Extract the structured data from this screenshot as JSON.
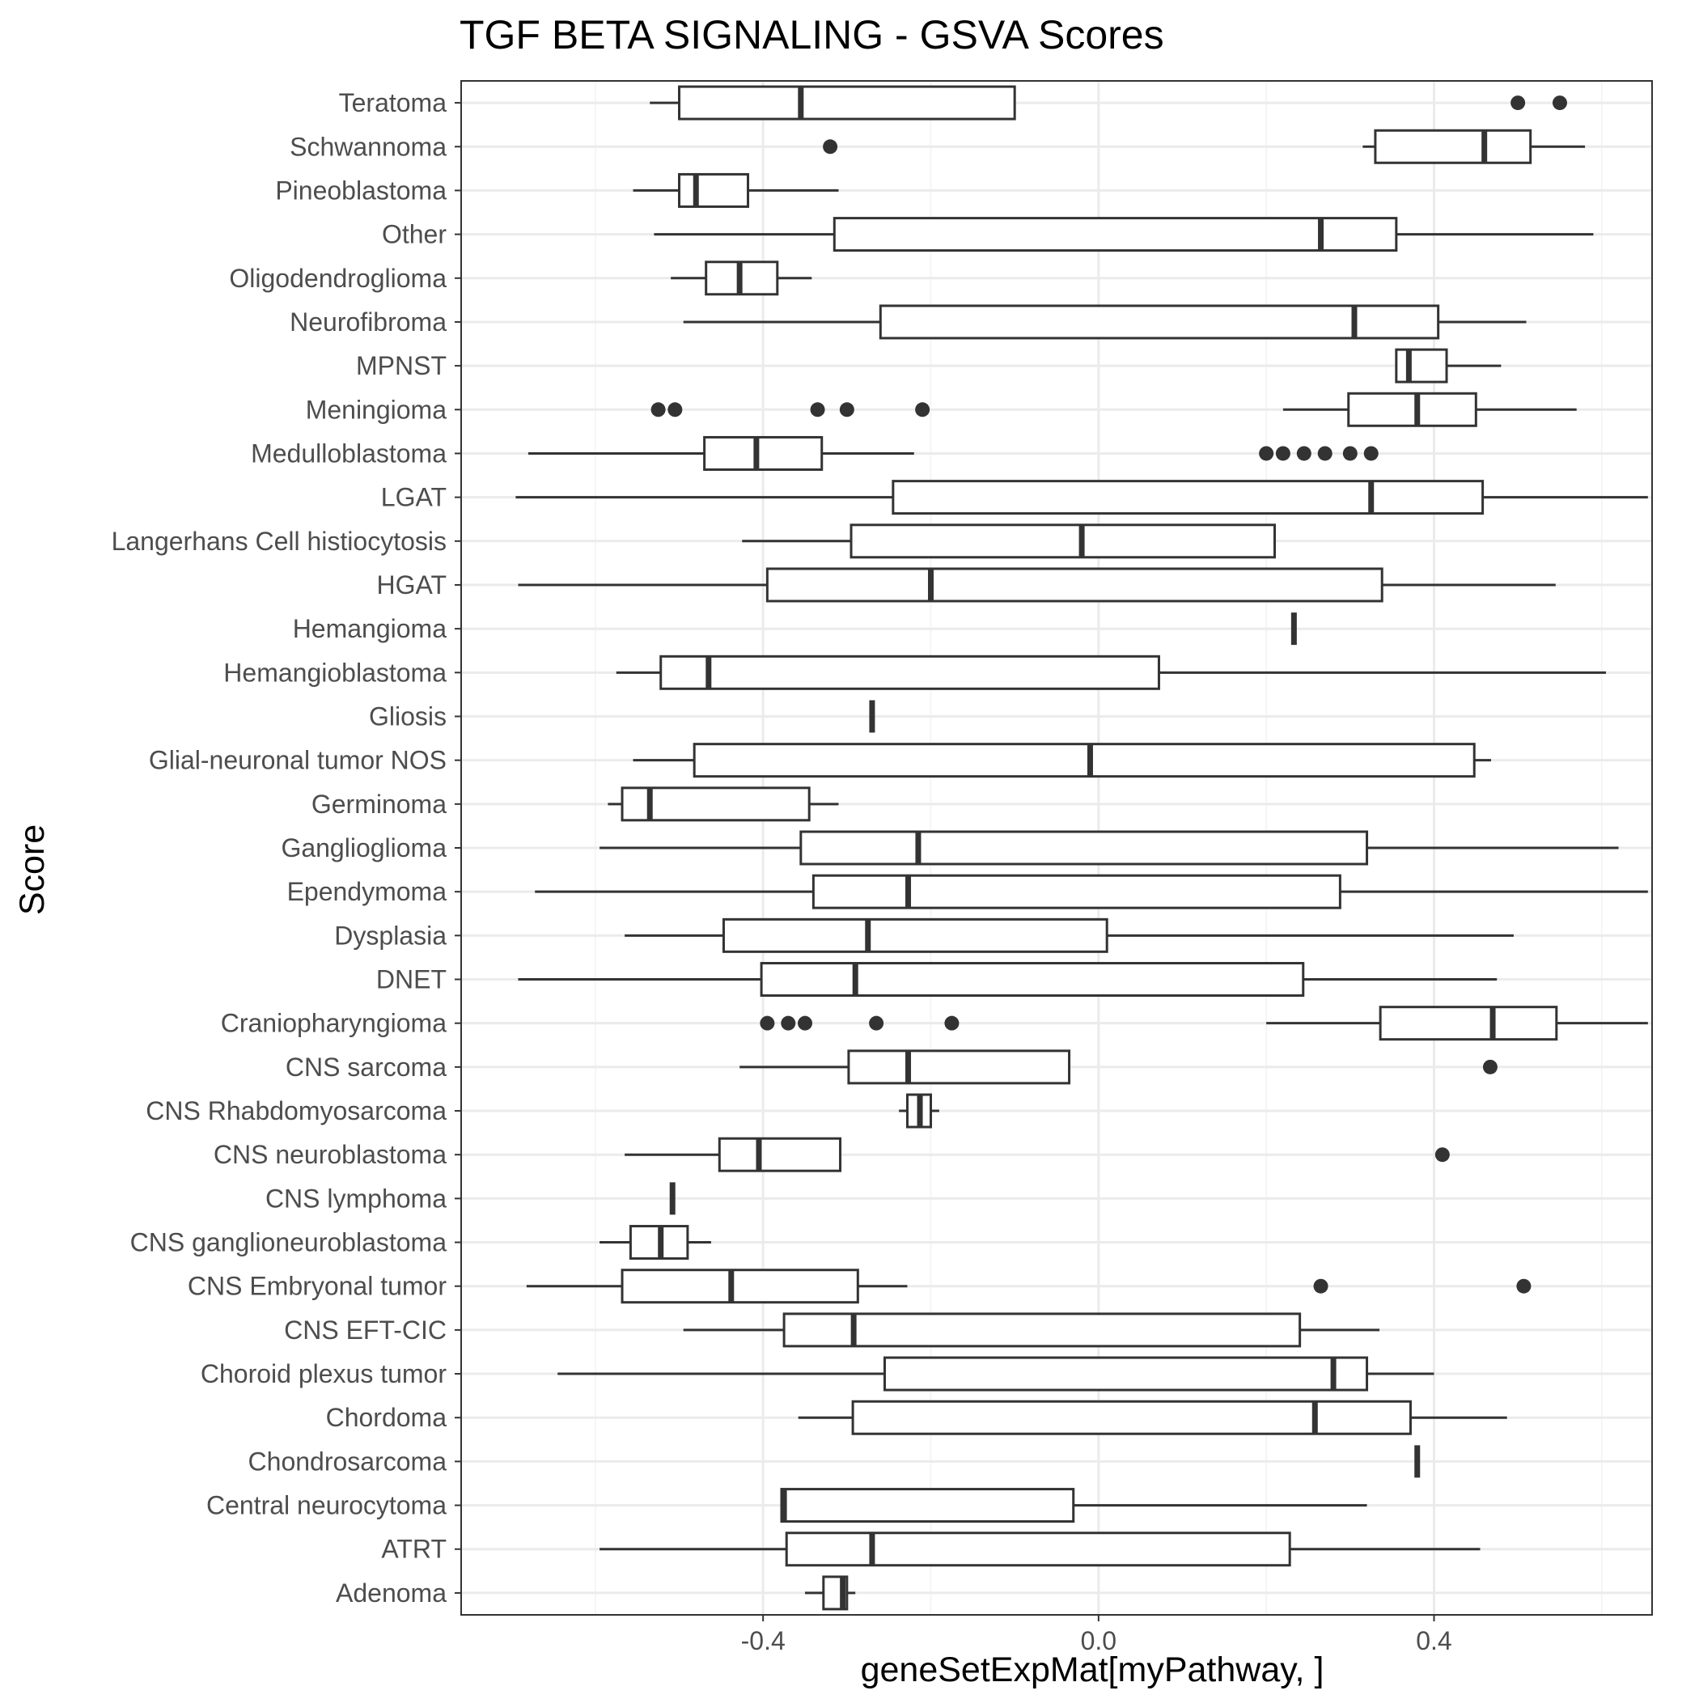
{
  "chart_data": {
    "type": "boxplot",
    "title": "TGF BETA SIGNALING - GSVA Scores",
    "xlabel": "geneSetExpMat[myPathway, ]",
    "ylabel": "Score",
    "xlim": [
      -0.76,
      0.66
    ],
    "xticks": [
      -0.4,
      0.0,
      0.4
    ],
    "xtick_labels": [
      "-0.4",
      "0.0",
      "0.4"
    ],
    "grid": true,
    "colors": {
      "box_stroke": "#333333",
      "grid_major": "#ebebeb",
      "grid_minor": "#f2f2f2",
      "panel_border": "#333333",
      "background": "#ffffff"
    },
    "categories": [
      {
        "name": "Teratoma",
        "whisker_low": -0.535,
        "q1": -0.5,
        "median": -0.355,
        "q3": -0.1,
        "whisker_high": -0.1,
        "outliers": [
          0.5,
          0.55
        ]
      },
      {
        "name": "Schwannoma",
        "whisker_low": 0.315,
        "q1": 0.33,
        "median": 0.46,
        "q3": 0.515,
        "whisker_high": 0.58,
        "outliers": [
          -0.32
        ]
      },
      {
        "name": "Pineoblastoma",
        "whisker_low": -0.555,
        "q1": -0.5,
        "median": -0.48,
        "q3": -0.418,
        "whisker_high": -0.31,
        "outliers": []
      },
      {
        "name": "Other",
        "whisker_low": -0.53,
        "q1": -0.315,
        "median": 0.265,
        "q3": 0.355,
        "whisker_high": 0.59,
        "outliers": []
      },
      {
        "name": "Oligodendroglioma",
        "whisker_low": -0.51,
        "q1": -0.468,
        "median": -0.428,
        "q3": -0.383,
        "whisker_high": -0.342,
        "outliers": []
      },
      {
        "name": "Neurofibroma",
        "whisker_low": -0.495,
        "q1": -0.26,
        "median": 0.305,
        "q3": 0.405,
        "whisker_high": 0.51,
        "outliers": []
      },
      {
        "name": "MPNST",
        "whisker_low": 0.355,
        "q1": 0.355,
        "median": 0.37,
        "q3": 0.415,
        "whisker_high": 0.48,
        "outliers": []
      },
      {
        "name": "Meningioma",
        "whisker_low": 0.22,
        "q1": 0.298,
        "median": 0.38,
        "q3": 0.45,
        "whisker_high": 0.57,
        "outliers": [
          -0.525,
          -0.505,
          -0.335,
          -0.3,
          -0.21
        ]
      },
      {
        "name": "Medulloblastoma",
        "whisker_low": -0.68,
        "q1": -0.47,
        "median": -0.408,
        "q3": -0.33,
        "whisker_high": -0.22,
        "outliers": [
          0.2,
          0.22,
          0.245,
          0.27,
          0.3,
          0.325
        ]
      },
      {
        "name": "LGAT",
        "whisker_low": -0.695,
        "q1": -0.245,
        "median": 0.325,
        "q3": 0.458,
        "whisker_high": 0.655,
        "outliers": []
      },
      {
        "name": "Langerhans Cell histiocytosis",
        "whisker_low": -0.425,
        "q1": -0.295,
        "median": -0.02,
        "q3": 0.21,
        "whisker_high": 0.21,
        "outliers": []
      },
      {
        "name": "HGAT",
        "whisker_low": -0.692,
        "q1": -0.395,
        "median": -0.2,
        "q3": 0.338,
        "whisker_high": 0.545,
        "outliers": []
      },
      {
        "name": "Hemangioma",
        "whisker_low": 0.233,
        "q1": 0.233,
        "median": 0.233,
        "q3": 0.233,
        "whisker_high": 0.233,
        "outliers": []
      },
      {
        "name": "Hemangioblastoma",
        "whisker_low": -0.575,
        "q1": -0.522,
        "median": -0.465,
        "q3": 0.072,
        "whisker_high": 0.605,
        "outliers": []
      },
      {
        "name": "Gliosis",
        "whisker_low": -0.27,
        "q1": -0.27,
        "median": -0.27,
        "q3": -0.27,
        "whisker_high": -0.27,
        "outliers": []
      },
      {
        "name": "Glial-neuronal tumor NOS",
        "whisker_low": -0.555,
        "q1": -0.482,
        "median": -0.01,
        "q3": 0.448,
        "whisker_high": 0.468,
        "outliers": []
      },
      {
        "name": "Germinoma",
        "whisker_low": -0.585,
        "q1": -0.568,
        "median": -0.535,
        "q3": -0.345,
        "whisker_high": -0.31,
        "outliers": []
      },
      {
        "name": "Ganglioglioma",
        "whisker_low": -0.595,
        "q1": -0.355,
        "median": -0.215,
        "q3": 0.32,
        "whisker_high": 0.62,
        "outliers": []
      },
      {
        "name": "Ependymoma",
        "whisker_low": -0.672,
        "q1": -0.34,
        "median": -0.227,
        "q3": 0.288,
        "whisker_high": 0.655,
        "outliers": []
      },
      {
        "name": "Dysplasia",
        "whisker_low": -0.565,
        "q1": -0.447,
        "median": -0.275,
        "q3": 0.01,
        "whisker_high": 0.495,
        "outliers": []
      },
      {
        "name": "DNET",
        "whisker_low": -0.692,
        "q1": -0.402,
        "median": -0.29,
        "q3": 0.244,
        "whisker_high": 0.475,
        "outliers": []
      },
      {
        "name": "Craniopharyngioma",
        "whisker_low": 0.2,
        "q1": 0.336,
        "median": 0.47,
        "q3": 0.546,
        "whisker_high": 0.655,
        "outliers": [
          -0.395,
          -0.37,
          -0.35,
          -0.265,
          -0.175
        ]
      },
      {
        "name": "CNS sarcoma",
        "whisker_low": -0.428,
        "q1": -0.298,
        "median": -0.227,
        "q3": -0.035,
        "whisker_high": -0.035,
        "outliers": [
          0.467
        ]
      },
      {
        "name": "CNS Rhabdomyosarcoma",
        "whisker_low": -0.238,
        "q1": -0.228,
        "median": -0.213,
        "q3": -0.2,
        "whisker_high": -0.19,
        "outliers": []
      },
      {
        "name": "CNS neuroblastoma",
        "whisker_low": -0.565,
        "q1": -0.452,
        "median": -0.405,
        "q3": -0.308,
        "whisker_high": -0.308,
        "outliers": [
          0.41
        ]
      },
      {
        "name": "CNS lymphoma",
        "whisker_low": -0.508,
        "q1": -0.508,
        "median": -0.508,
        "q3": -0.508,
        "whisker_high": -0.508,
        "outliers": []
      },
      {
        "name": "CNS ganglioneuroblastoma",
        "whisker_low": -0.595,
        "q1": -0.558,
        "median": -0.522,
        "q3": -0.49,
        "whisker_high": -0.462,
        "outliers": []
      },
      {
        "name": "CNS Embryonal tumor",
        "whisker_low": -0.682,
        "q1": -0.568,
        "median": -0.438,
        "q3": -0.287,
        "whisker_high": -0.228,
        "outliers": [
          0.265,
          0.507
        ]
      },
      {
        "name": "CNS EFT-CIC",
        "whisker_low": -0.495,
        "q1": -0.375,
        "median": -0.292,
        "q3": 0.24,
        "whisker_high": 0.335,
        "outliers": []
      },
      {
        "name": "Choroid plexus tumor",
        "whisker_low": -0.645,
        "q1": -0.255,
        "median": 0.28,
        "q3": 0.32,
        "whisker_high": 0.4,
        "outliers": []
      },
      {
        "name": "Chordoma",
        "whisker_low": -0.358,
        "q1": -0.293,
        "median": 0.258,
        "q3": 0.372,
        "whisker_high": 0.487,
        "outliers": []
      },
      {
        "name": "Chondrosarcoma",
        "whisker_low": 0.38,
        "q1": 0.38,
        "median": 0.38,
        "q3": 0.38,
        "whisker_high": 0.38,
        "outliers": []
      },
      {
        "name": "Central neurocytoma",
        "whisker_low": -0.378,
        "q1": -0.378,
        "median": -0.375,
        "q3": -0.03,
        "whisker_high": 0.32,
        "outliers": []
      },
      {
        "name": "ATRT",
        "whisker_low": -0.595,
        "q1": -0.372,
        "median": -0.27,
        "q3": 0.228,
        "whisker_high": 0.455,
        "outliers": []
      },
      {
        "name": "Adenoma",
        "whisker_low": -0.35,
        "q1": -0.328,
        "median": -0.305,
        "q3": -0.3,
        "whisker_high": -0.29,
        "outliers": []
      }
    ]
  }
}
